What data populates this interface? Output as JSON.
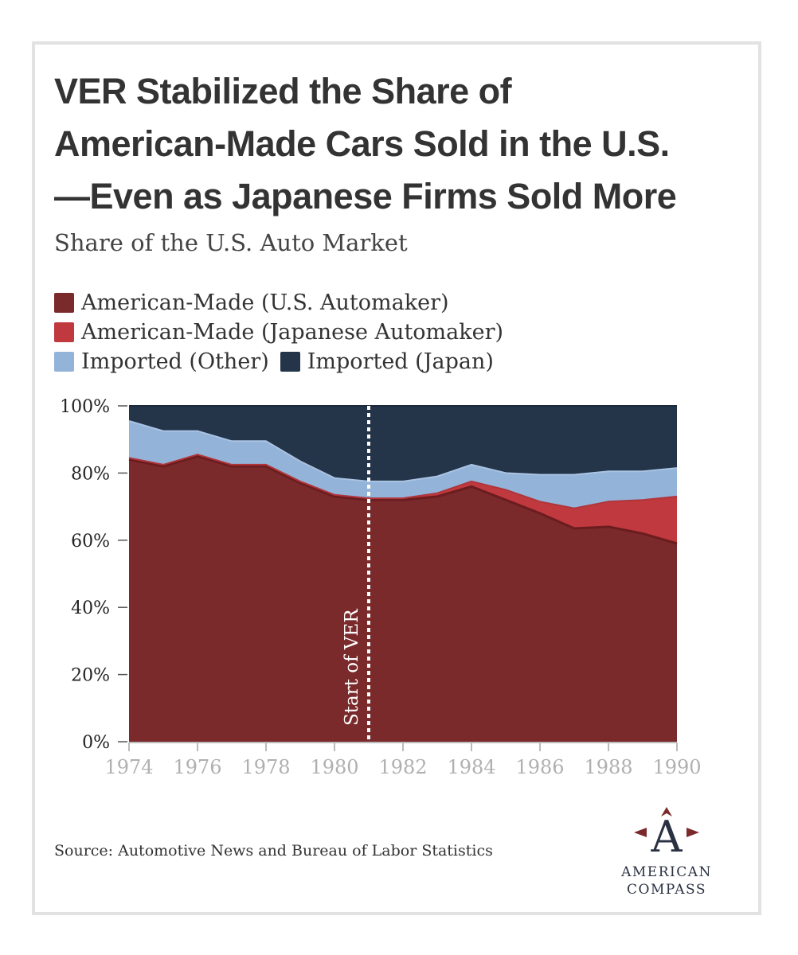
{
  "title_lines": [
    "VER Stabilized the Share of",
    "American-Made Cars Sold in the U.S.",
    "—Even as Japanese Firms Sold More"
  ],
  "subtitle": "Share of the U.S. Auto Market",
  "legend": [
    {
      "label": "American-Made (U.S. Automaker)",
      "color": "#7b2a2c"
    },
    {
      "label": "American-Made (Japanese Automaker)",
      "color": "#c0393f"
    },
    {
      "label": "Imported (Other)",
      "color": "#93b3d9"
    },
    {
      "label": "Imported (Japan)",
      "color": "#243449"
    }
  ],
  "source": "Source: Automotive News and Bureau of Labor Statistics",
  "logo": {
    "line1": "AMERICAN",
    "line2": "COMPASS",
    "mark": "A"
  },
  "chart_data": {
    "type": "area",
    "stacked": true,
    "title": "Share of the U.S. Auto Market",
    "x": [
      1974,
      1975,
      1976,
      1977,
      1978,
      1979,
      1980,
      1981,
      1982,
      1983,
      1984,
      1985,
      1986,
      1987,
      1988,
      1989,
      1990
    ],
    "series": [
      {
        "name": "American-Made (U.S. Automaker)",
        "color": "#7b2a2c",
        "values": [
          84,
          82,
          85,
          82,
          82,
          77,
          73,
          72,
          72,
          73,
          76,
          72,
          68,
          63.5,
          64,
          62,
          59
        ]
      },
      {
        "name": "American-Made (Japanese Automaker)",
        "color": "#c0393f",
        "values": [
          0.5,
          0.5,
          0.5,
          0.5,
          0.5,
          0.5,
          0.5,
          0.5,
          0.5,
          1,
          1.5,
          3,
          3.5,
          6,
          7.5,
          10,
          14
        ]
      },
      {
        "name": "Imported (Other)",
        "color": "#93b3d9",
        "values": [
          11,
          10,
          7,
          7,
          7,
          6,
          5,
          5,
          5,
          5,
          5,
          5,
          8,
          10,
          9,
          8.5,
          8.5
        ]
      },
      {
        "name": "Imported (Japan)",
        "color": "#243449",
        "values": [
          4.5,
          7.5,
          7.5,
          10.5,
          10.5,
          16.5,
          21.5,
          22.5,
          22.5,
          21,
          17.5,
          20,
          20.5,
          20.5,
          19.5,
          19.5,
          18.5
        ]
      }
    ],
    "x_ticks": [
      "1974",
      "1976",
      "1978",
      "1980",
      "1982",
      "1984",
      "1986",
      "1988",
      "1990"
    ],
    "y_ticks": [
      "0%",
      "20%",
      "40%",
      "60%",
      "80%",
      "100%"
    ],
    "ylim": [
      0,
      100
    ],
    "xlim": [
      1974,
      1990
    ],
    "annotation": {
      "x": 1981,
      "label": "Start of VER"
    },
    "xlabel": "",
    "ylabel": ""
  }
}
